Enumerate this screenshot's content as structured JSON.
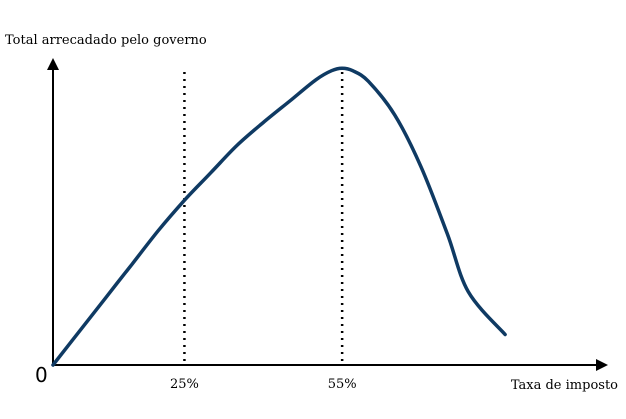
{
  "chart_data": {
    "type": "line",
    "ylabel": "Total arrecadado pelo governo",
    "xlabel": "Taxa de imposto",
    "origin_label": "0",
    "x_ticks": [
      {
        "x": 25,
        "label": "25%"
      },
      {
        "x": 55,
        "label": "55%"
      }
    ],
    "reference_lines": [
      25,
      55
    ],
    "xlim": [
      0,
      105
    ],
    "ylim": [
      0,
      100
    ],
    "series": [
      {
        "x": [
          0,
          5,
          10,
          15,
          20,
          25,
          30,
          35,
          40,
          45,
          50,
          53,
          55,
          57,
          60,
          65,
          70,
          75,
          79,
          86
        ],
        "y": [
          0,
          11,
          22,
          33,
          44,
          54,
          63,
          72,
          79.5,
          86.5,
          93.5,
          96.5,
          97.3,
          96.5,
          93,
          82,
          65,
          43,
          24,
          10
        ]
      }
    ],
    "colors": {
      "line": "#0f3a63",
      "axis": "#000000",
      "reference": "#000000"
    },
    "grid": false
  }
}
